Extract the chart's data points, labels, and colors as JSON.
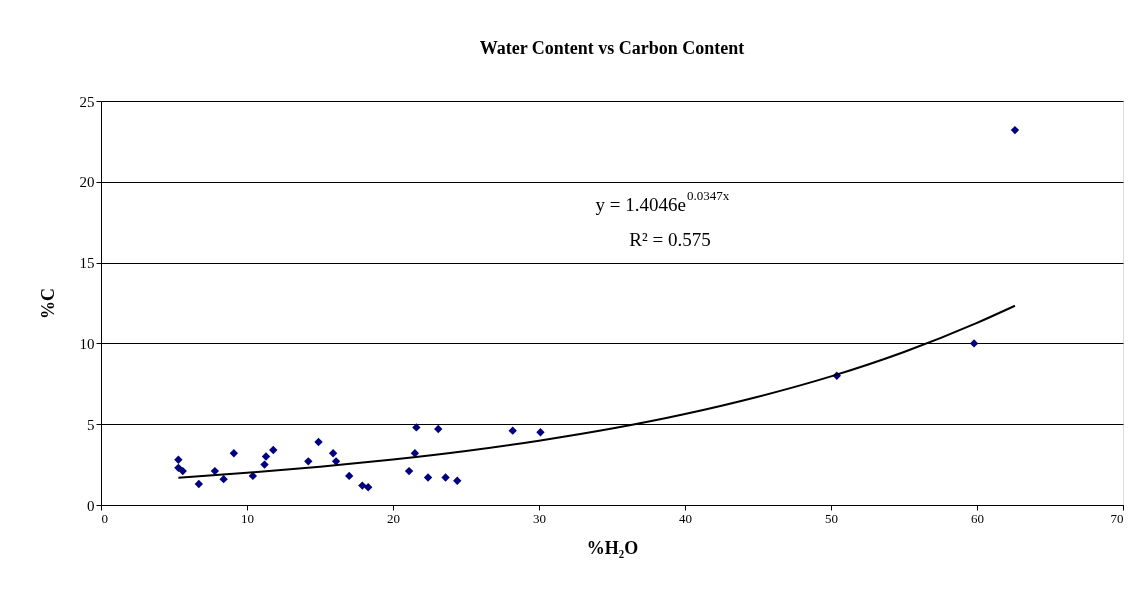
{
  "chart_data": {
    "type": "scatter",
    "title": "Water Content vs Carbon Content",
    "xlabel": "%H₂O",
    "ylabel": "%C",
    "xlim": [
      0,
      70
    ],
    "xticks": [
      0,
      10,
      20,
      30,
      40,
      50,
      60,
      70
    ],
    "ylim": [
      0,
      25
    ],
    "yticks": [
      0,
      5,
      10,
      15,
      20,
      25
    ],
    "grid": "y",
    "annotations": [
      "y = 1.4046e$^{0.0347x}$",
      "R² = 0.575"
    ],
    "series": [
      {
        "type": "scatter",
        "color": "#000080",
        "marker": "diamond",
        "x": [
          5.3,
          5.3,
          5.6,
          6.7,
          7.8,
          8.4,
          9.1,
          10.4,
          11.2,
          11.3,
          11.8,
          14.2,
          14.9,
          15.9,
          16.1,
          17.0,
          17.9,
          18.3,
          21.6,
          23.1,
          21.5,
          21.1,
          22.4,
          23.6,
          24.4,
          28.2,
          30.1,
          50.4,
          59.8,
          62.6
        ],
        "values": [
          2.8,
          2.3,
          2.1,
          1.3,
          2.1,
          1.6,
          3.2,
          1.8,
          2.5,
          3.0,
          3.4,
          2.7,
          3.9,
          3.2,
          2.7,
          1.8,
          1.2,
          1.1,
          4.8,
          4.7,
          3.2,
          2.1,
          1.7,
          1.7,
          1.5,
          4.6,
          4.5,
          8.0,
          10.0,
          23.2
        ]
      },
      {
        "type": "line",
        "color": "#000000",
        "marker": "none",
        "x": [
          5.3,
          10,
          15,
          20,
          25,
          30,
          35,
          40,
          45,
          50,
          55,
          60,
          62.6
        ],
        "values": [
          1.69,
          1.99,
          2.36,
          2.81,
          3.34,
          3.98,
          4.73,
          5.63,
          6.7,
          7.96,
          9.47,
          11.27,
          12.33
        ]
      }
    ]
  }
}
